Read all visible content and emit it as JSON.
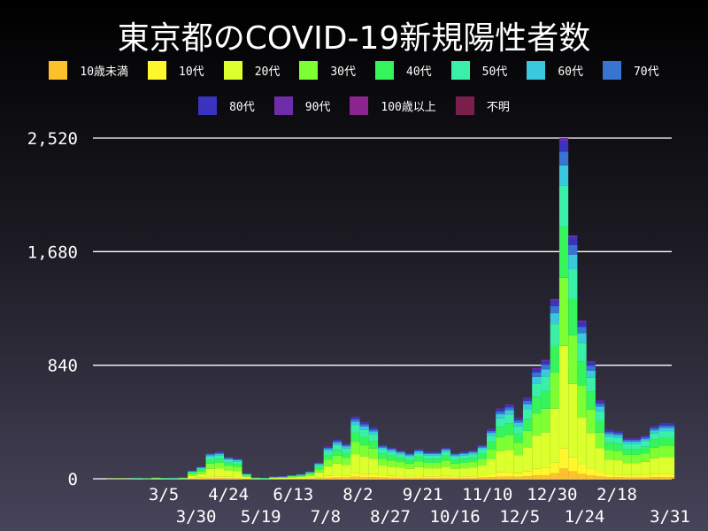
{
  "title": "東京都のCOVID-19新規陽性者数",
  "chart_data": {
    "type": "bar",
    "stacked": true,
    "title": "東京都のCOVID-19新規陽性者数",
    "series_names": [
      "10歳未満",
      "10代",
      "20代",
      "30代",
      "40代",
      "50代",
      "60代",
      "70代",
      "80代",
      "90代",
      "100歳以上",
      "不明"
    ],
    "colors": [
      "#ffc12b",
      "#fff72d",
      "#dcff2e",
      "#7dff33",
      "#36f55a",
      "#3af0a8",
      "#3ac8dc",
      "#3775d0",
      "#3a33c0",
      "#6e2ca8",
      "#8c2490",
      "#7a1f4c"
    ],
    "ylim": [
      0,
      2520
    ],
    "yticks": [
      {
        "value": 0,
        "label": "0"
      },
      {
        "value": 840,
        "label": "840"
      },
      {
        "value": 1680,
        "label": "1,680"
      },
      {
        "value": 2520,
        "label": "2,520"
      }
    ],
    "xticks": [
      {
        "date": "2020-03-05",
        "label": "3/5"
      },
      {
        "date": "2020-03-30",
        "label": "3/30"
      },
      {
        "date": "2020-04-24",
        "label": "4/24"
      },
      {
        "date": "2020-05-19",
        "label": "5/19"
      },
      {
        "date": "2020-06-13",
        "label": "6/13"
      },
      {
        "date": "2020-07-08",
        "label": "7/8"
      },
      {
        "date": "2020-08-02",
        "label": "8/2"
      },
      {
        "date": "2020-08-27",
        "label": "8/27"
      },
      {
        "date": "2020-09-21",
        "label": "9/21"
      },
      {
        "date": "2020-10-16",
        "label": "10/16"
      },
      {
        "date": "2020-11-10",
        "label": "11/10"
      },
      {
        "date": "2020-12-05",
        "label": "12/5"
      },
      {
        "date": "2020-12-30",
        "label": "12/30"
      },
      {
        "date": "2021-01-24",
        "label": "1/24"
      },
      {
        "date": "2021-02-18",
        "label": "2/18"
      },
      {
        "date": "2021-03-31",
        "label": "3/31"
      }
    ],
    "grid": "horizontal",
    "legend": "top",
    "rows": [
      {
        "date": "2020-01-24",
        "counts": [
          0,
          0,
          0,
          1,
          0,
          0,
          0,
          0,
          0,
          0,
          0,
          0
        ]
      },
      {
        "date": "2020-01-31",
        "counts": [
          0,
          0,
          1,
          1,
          0,
          0,
          0,
          0,
          0,
          0,
          0,
          0
        ]
      },
      {
        "date": "2020-02-07",
        "counts": [
          0,
          0,
          0,
          1,
          0,
          0,
          0,
          0,
          0,
          0,
          0,
          0
        ]
      },
      {
        "date": "2020-02-14",
        "counts": [
          0,
          0,
          2,
          2,
          1,
          1,
          1,
          1,
          0,
          0,
          0,
          0
        ]
      },
      {
        "date": "2020-02-21",
        "counts": [
          0,
          0,
          1,
          1,
          1,
          0,
          0,
          0,
          0,
          0,
          0,
          0
        ]
      },
      {
        "date": "2020-02-28",
        "counts": [
          0,
          1,
          3,
          2,
          1,
          1,
          1,
          1,
          0,
          0,
          0,
          0
        ]
      },
      {
        "date": "2020-03-06",
        "counts": [
          0,
          0,
          2,
          1,
          1,
          1,
          0,
          0,
          0,
          0,
          0,
          0
        ]
      },
      {
        "date": "2020-03-13",
        "counts": [
          0,
          0,
          2,
          2,
          1,
          1,
          1,
          1,
          0,
          0,
          0,
          0
        ]
      },
      {
        "date": "2020-03-20",
        "counts": [
          0,
          1,
          3,
          2,
          1,
          1,
          1,
          1,
          0,
          0,
          0,
          0
        ]
      },
      {
        "date": "2020-03-27",
        "counts": [
          2,
          4,
          18,
          12,
          9,
          7,
          4,
          2,
          2,
          0,
          0,
          0
        ]
      },
      {
        "date": "2020-04-03",
        "counts": [
          3,
          5,
          27,
          18,
          14,
          11,
          5,
          4,
          3,
          0,
          0,
          0
        ]
      },
      {
        "date": "2020-04-10",
        "counts": [
          6,
          11,
          57,
          38,
          29,
          23,
          11,
          8,
          6,
          1,
          0,
          0
        ]
      },
      {
        "date": "2020-04-17",
        "counts": [
          6,
          12,
          60,
          40,
          30,
          24,
          12,
          8,
          6,
          2,
          0,
          0
        ]
      },
      {
        "date": "2020-04-24",
        "counts": [
          5,
          10,
          48,
          32,
          24,
          19,
          10,
          6,
          5,
          1,
          0,
          0
        ]
      },
      {
        "date": "2020-05-01",
        "counts": [
          4,
          9,
          45,
          30,
          23,
          18,
          9,
          6,
          5,
          1,
          0,
          0
        ]
      },
      {
        "date": "2020-05-08",
        "counts": [
          1,
          2,
          12,
          8,
          6,
          5,
          3,
          2,
          1,
          0,
          0,
          0
        ]
      },
      {
        "date": "2020-05-15",
        "counts": [
          0,
          1,
          3,
          2,
          1,
          1,
          1,
          1,
          0,
          0,
          0,
          0
        ]
      },
      {
        "date": "2020-05-22",
        "counts": [
          0,
          0,
          2,
          1,
          1,
          1,
          0,
          0,
          0,
          0,
          0,
          0
        ]
      },
      {
        "date": "2020-05-29",
        "counts": [
          0,
          1,
          5,
          3,
          2,
          2,
          1,
          1,
          0,
          0,
          0,
          0
        ]
      },
      {
        "date": "2020-06-05",
        "counts": [
          1,
          1,
          6,
          4,
          3,
          2,
          1,
          1,
          1,
          0,
          0,
          0
        ]
      },
      {
        "date": "2020-06-12",
        "counts": [
          1,
          2,
          8,
          5,
          4,
          3,
          1,
          1,
          0,
          0,
          0,
          0
        ]
      },
      {
        "date": "2020-06-19",
        "counts": [
          1,
          2,
          11,
          7,
          5,
          4,
          2,
          2,
          1,
          0,
          0,
          0
        ]
      },
      {
        "date": "2020-06-26",
        "counts": [
          2,
          3,
          17,
          11,
          8,
          7,
          3,
          2,
          2,
          0,
          0,
          0
        ]
      },
      {
        "date": "2020-07-03",
        "counts": [
          4,
          7,
          36,
          24,
          18,
          14,
          7,
          5,
          4,
          1,
          0,
          0
        ]
      },
      {
        "date": "2020-07-10",
        "counts": [
          7,
          14,
          72,
          48,
          36,
          29,
          14,
          10,
          7,
          3,
          0,
          0
        ]
      },
      {
        "date": "2020-07-17",
        "counts": [
          9,
          17,
          87,
          58,
          44,
          35,
          17,
          12,
          9,
          2,
          0,
          0
        ]
      },
      {
        "date": "2020-07-24",
        "counts": [
          8,
          16,
          78,
          52,
          39,
          31,
          16,
          10,
          8,
          2,
          0,
          0
        ]
      },
      {
        "date": "2020-07-31",
        "counts": [
          14,
          28,
          138,
          92,
          69,
          55,
          28,
          18,
          14,
          4,
          0,
          0
        ]
      },
      {
        "date": "2020-08-07",
        "counts": [
          13,
          25,
          126,
          84,
          63,
          50,
          25,
          17,
          13,
          4,
          0,
          0
        ]
      },
      {
        "date": "2020-08-14",
        "counts": [
          11,
          23,
          114,
          76,
          57,
          46,
          23,
          15,
          11,
          4,
          0,
          0
        ]
      },
      {
        "date": "2020-08-21",
        "counts": [
          8,
          15,
          75,
          50,
          38,
          30,
          15,
          10,
          7,
          2,
          0,
          0
        ]
      },
      {
        "date": "2020-08-28",
        "counts": [
          7,
          14,
          69,
          46,
          35,
          28,
          14,
          9,
          6,
          2,
          0,
          0
        ]
      },
      {
        "date": "2020-09-04",
        "counts": [
          6,
          13,
          63,
          42,
          32,
          25,
          13,
          8,
          6,
          2,
          0,
          0
        ]
      },
      {
        "date": "2020-09-11",
        "counts": [
          6,
          11,
          57,
          38,
          29,
          23,
          11,
          8,
          6,
          1,
          0,
          0
        ]
      },
      {
        "date": "2020-09-18",
        "counts": [
          7,
          13,
          66,
          44,
          33,
          26,
          13,
          9,
          7,
          2,
          0,
          0
        ]
      },
      {
        "date": "2020-09-25",
        "counts": [
          6,
          12,
          60,
          40,
          30,
          24,
          12,
          8,
          6,
          2,
          0,
          0
        ]
      },
      {
        "date": "2020-10-02",
        "counts": [
          6,
          12,
          60,
          40,
          30,
          24,
          12,
          8,
          6,
          2,
          0,
          0
        ]
      },
      {
        "date": "2020-10-09",
        "counts": [
          7,
          14,
          69,
          46,
          35,
          28,
          14,
          9,
          6,
          2,
          0,
          0
        ]
      },
      {
        "date": "2020-10-16",
        "counts": [
          6,
          11,
          57,
          38,
          29,
          23,
          11,
          8,
          6,
          1,
          0,
          0
        ]
      },
      {
        "date": "2020-10-23",
        "counts": [
          6,
          12,
          60,
          40,
          30,
          24,
          12,
          8,
          6,
          2,
          0,
          0
        ]
      },
      {
        "date": "2020-10-30",
        "counts": [
          6,
          13,
          63,
          42,
          32,
          25,
          13,
          8,
          6,
          2,
          0,
          0
        ]
      },
      {
        "date": "2020-11-06",
        "counts": [
          8,
          15,
          75,
          50,
          38,
          30,
          15,
          10,
          7,
          2,
          0,
          0
        ]
      },
      {
        "date": "2020-11-13",
        "counts": [
          11,
          22,
          111,
          74,
          56,
          44,
          22,
          15,
          11,
          4,
          0,
          0
        ]
      },
      {
        "date": "2020-11-20",
        "counts": [
          16,
          31,
          156,
          104,
          78,
          62,
          31,
          21,
          16,
          5,
          0,
          0
        ]
      },
      {
        "date": "2020-11-27",
        "counts": [
          17,
          33,
          165,
          110,
          83,
          66,
          33,
          22,
          16,
          5,
          0,
          0
        ]
      },
      {
        "date": "2020-12-04",
        "counts": [
          14,
          27,
          135,
          90,
          68,
          54,
          27,
          18,
          13,
          4,
          0,
          0
        ]
      },
      {
        "date": "2020-12-11",
        "counts": [
          18,
          36,
          180,
          120,
          90,
          72,
          36,
          24,
          18,
          6,
          0,
          0
        ]
      },
      {
        "date": "2020-12-18",
        "counts": [
          25,
          49,
          246,
          164,
          123,
          98,
          49,
          33,
          25,
          8,
          0,
          0
        ]
      },
      {
        "date": "2020-12-25",
        "counts": [
          26,
          53,
          264,
          176,
          132,
          106,
          53,
          35,
          26,
          9,
          0,
          0
        ]
      },
      {
        "date": "2021-01-01",
        "counts": [
          40,
          80,
          399,
          266,
          200,
          160,
          80,
          53,
          39,
          13,
          0,
          0
        ]
      },
      {
        "date": "2021-01-08",
        "counts": [
          76,
          151,
          756,
          504,
          378,
          302,
          151,
          101,
          76,
          25,
          0,
          0
        ]
      },
      {
        "date": "2021-01-15",
        "counts": [
          54,
          108,
          540,
          360,
          270,
          216,
          108,
          72,
          54,
          18,
          0,
          0
        ]
      },
      {
        "date": "2021-01-22",
        "counts": [
          35,
          70,
          351,
          234,
          176,
          140,
          70,
          47,
          35,
          12,
          0,
          0
        ]
      },
      {
        "date": "2021-01-29",
        "counts": [
          26,
          52,
          261,
          174,
          131,
          104,
          52,
          35,
          26,
          9,
          0,
          0
        ]
      },
      {
        "date": "2021-02-05",
        "counts": [
          17,
          35,
          174,
          116,
          87,
          70,
          35,
          23,
          17,
          6,
          0,
          0
        ]
      },
      {
        "date": "2021-02-12",
        "counts": [
          11,
          22,
          108,
          72,
          54,
          43,
          22,
          14,
          11,
          3,
          0,
          0
        ]
      },
      {
        "date": "2021-02-19",
        "counts": [
          11,
          21,
          105,
          70,
          53,
          42,
          21,
          14,
          10,
          3,
          0,
          0
        ]
      },
      {
        "date": "2021-02-26",
        "counts": [
          9,
          18,
          90,
          60,
          45,
          36,
          18,
          12,
          9,
          3,
          0,
          0
        ]
      },
      {
        "date": "2021-03-05",
        "counts": [
          9,
          18,
          90,
          60,
          45,
          36,
          18,
          12,
          9,
          3,
          0,
          0
        ]
      },
      {
        "date": "2021-03-12",
        "counts": [
          10,
          19,
          96,
          64,
          48,
          38,
          19,
          13,
          10,
          3,
          0,
          0
        ]
      },
      {
        "date": "2021-03-19",
        "counts": [
          12,
          23,
          117,
          78,
          59,
          47,
          23,
          16,
          12,
          3,
          0,
          0
        ]
      },
      {
        "date": "2021-03-26",
        "counts": [
          12,
          25,
          123,
          82,
          62,
          49,
          25,
          16,
          12,
          4,
          0,
          0
        ]
      },
      {
        "date": "2021-03-31",
        "counts": [
          12,
          25,
          123,
          82,
          62,
          49,
          25,
          16,
          12,
          4,
          0,
          0
        ]
      }
    ]
  }
}
